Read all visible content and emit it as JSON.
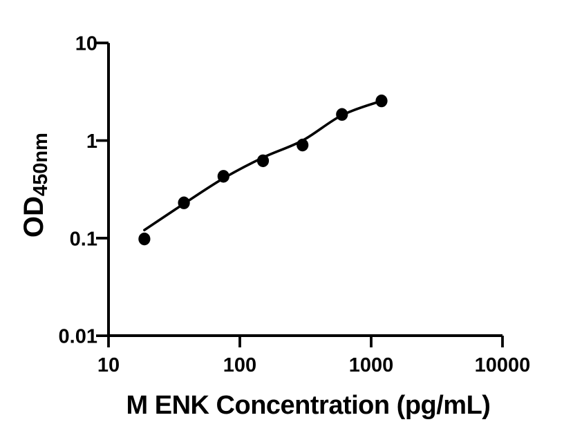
{
  "figure": {
    "background_color": "#ffffff",
    "ink_color": "#000000"
  },
  "chart_data": {
    "type": "scatter",
    "title": "",
    "xlabel": "M ENK Concentration (pg/mL)",
    "ylabel": "OD",
    "ylabel_subscript": "450nm",
    "x_scale": "log10",
    "y_scale": "log10",
    "xlim": [
      10,
      10000
    ],
    "ylim": [
      0.01,
      10
    ],
    "x_ticks": [
      10,
      100,
      1000,
      10000
    ],
    "x_tick_labels": [
      "10",
      "100",
      "1000",
      "10000"
    ],
    "y_ticks": [
      10,
      1,
      0.1,
      0.01
    ],
    "y_tick_labels": [
      "10",
      "1",
      "0.1",
      "0.01"
    ],
    "grid": false,
    "legend": null,
    "marker_color": "#000000",
    "line_color": "#000000",
    "series": [
      {
        "name": "standard-curve-points",
        "x": [
          18.75,
          37.5,
          75,
          150,
          300,
          600,
          1200
        ],
        "y": [
          0.098,
          0.23,
          0.43,
          0.62,
          0.9,
          1.85,
          2.55
        ]
      }
    ],
    "fit_curve": {
      "name": "fitted-standard-curve",
      "x": [
        18.75,
        37.5,
        75,
        150,
        300,
        600,
        1200
      ],
      "y": [
        0.121,
        0.225,
        0.41,
        0.67,
        1.0,
        1.82,
        2.55
      ]
    }
  }
}
